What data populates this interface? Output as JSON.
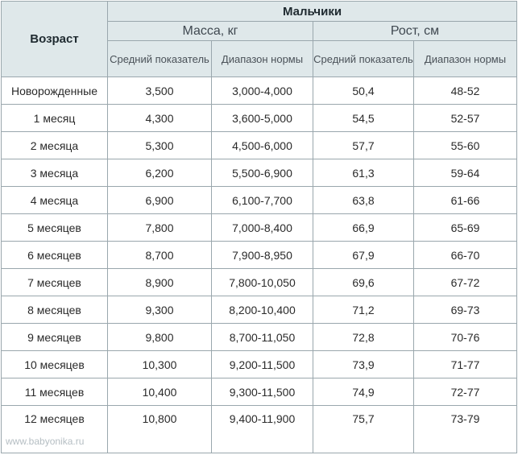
{
  "table": {
    "age_header": "Возраст",
    "group_header": "Мальчики",
    "mass_header": "Масса, кг",
    "height_header": "Рост, см",
    "col_avg": "Средний показатель",
    "col_range": "Диапазон нормы",
    "rows": [
      {
        "age": "Новорожденные",
        "mass_avg": "3,500",
        "mass_range": "3,000-4,000",
        "height_avg": "50,4",
        "height_range": "48-52"
      },
      {
        "age": "1 месяц",
        "mass_avg": "4,300",
        "mass_range": "3,600-5,000",
        "height_avg": "54,5",
        "height_range": "52-57"
      },
      {
        "age": "2 месяца",
        "mass_avg": "5,300",
        "mass_range": "4,500-6,000",
        "height_avg": "57,7",
        "height_range": "55-60"
      },
      {
        "age": "3 месяца",
        "mass_avg": "6,200",
        "mass_range": "5,500-6,900",
        "height_avg": "61,3",
        "height_range": "59-64"
      },
      {
        "age": "4 месяца",
        "mass_avg": "6,900",
        "mass_range": "6,100-7,700",
        "height_avg": "63,8",
        "height_range": "61-66"
      },
      {
        "age": "5 месяцев",
        "mass_avg": "7,800",
        "mass_range": "7,000-8,400",
        "height_avg": "66,9",
        "height_range": "65-69"
      },
      {
        "age": "6 месяцев",
        "mass_avg": "8,700",
        "mass_range": "7,900-8,950",
        "height_avg": "67,9",
        "height_range": "66-70"
      },
      {
        "age": "7 месяцев",
        "mass_avg": "8,900",
        "mass_range": "7,800-10,050",
        "height_avg": "69,6",
        "height_range": "67-72"
      },
      {
        "age": "8 месяцев",
        "mass_avg": "9,300",
        "mass_range": "8,200-10,400",
        "height_avg": "71,2",
        "height_range": "69-73"
      },
      {
        "age": "9 месяцев",
        "mass_avg": "9,800",
        "mass_range": "8,700-11,050",
        "height_avg": "72,8",
        "height_range": "70-76"
      },
      {
        "age": "10 месяцев",
        "mass_avg": "10,300",
        "mass_range": "9,200-11,500",
        "height_avg": "73,9",
        "height_range": "71-77"
      },
      {
        "age": "11 месяцев",
        "mass_avg": "10,400",
        "mass_range": "9,300-11,500",
        "height_avg": "74,9",
        "height_range": "72-77"
      },
      {
        "age": "12 месяцев",
        "mass_avg": "10,800",
        "mass_range": "9,400-11,900",
        "height_avg": "75,7",
        "height_range": "73-79"
      }
    ]
  },
  "watermark": "www.babyonika.ru",
  "colors": {
    "header_bg": "#dfe8ea",
    "border": "#9aa7ad"
  }
}
